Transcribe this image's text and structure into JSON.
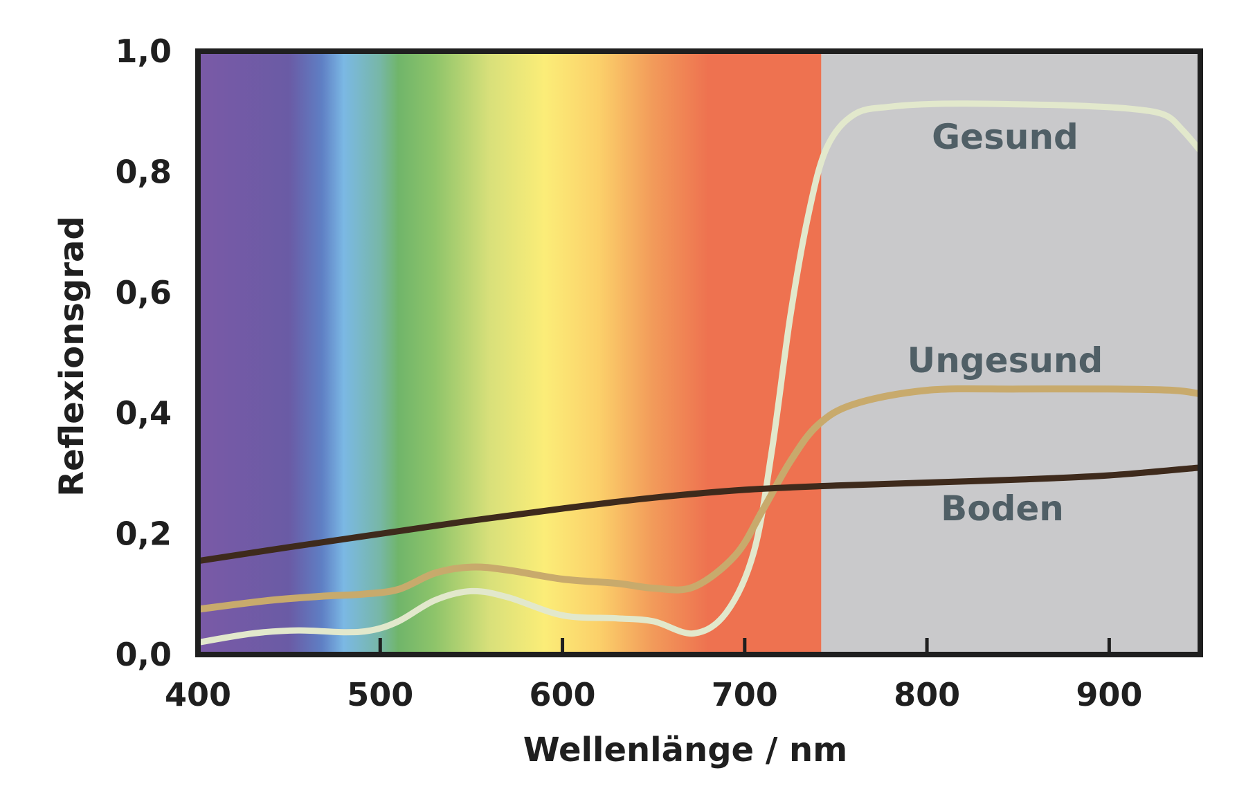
{
  "chart_data": {
    "type": "line",
    "xlabel": "Wellenlänge / nm",
    "ylabel": "Reflexionsgrad",
    "xlim": [
      400,
      950
    ],
    "ylim": [
      0.0,
      1.0
    ],
    "x_ticks": [
      400,
      500,
      600,
      700,
      800,
      900
    ],
    "x_tick_labels": [
      "400",
      "500",
      "600",
      "700",
      "800",
      "900"
    ],
    "y_ticks": [
      0.0,
      0.2,
      0.4,
      0.6,
      0.8,
      1.0
    ],
    "y_tick_labels": [
      "0,0",
      "0,2",
      "0,4",
      "0,6",
      "0,8",
      "1,0"
    ],
    "background": {
      "visible_spectrum_end_nm": 742,
      "infrared_color": "#c9c9cb",
      "spectrum_stops": [
        {
          "nm": 400,
          "color": "#7a5aa6"
        },
        {
          "nm": 450,
          "color": "#6a5ba5"
        },
        {
          "nm": 468,
          "color": "#5f7fc4"
        },
        {
          "nm": 480,
          "color": "#7bb8e4"
        },
        {
          "nm": 500,
          "color": "#77b7a6"
        },
        {
          "nm": 510,
          "color": "#70b56a"
        },
        {
          "nm": 530,
          "color": "#8ec46a"
        },
        {
          "nm": 560,
          "color": "#d8e07a"
        },
        {
          "nm": 590,
          "color": "#fbed78"
        },
        {
          "nm": 620,
          "color": "#fbd06a"
        },
        {
          "nm": 650,
          "color": "#f29a5a"
        },
        {
          "nm": 680,
          "color": "#ee7250"
        },
        {
          "nm": 742,
          "color": "#ee7250"
        }
      ]
    },
    "series": [
      {
        "name": "Gesund",
        "color": "#e2e8cc",
        "label_color": "#505f66",
        "x": [
          400,
          430,
          455,
          480,
          495,
          510,
          530,
          550,
          570,
          600,
          630,
          650,
          672,
          690,
          705,
          715,
          725,
          735,
          745,
          760,
          780,
          810,
          850,
          880,
          910,
          930,
          940,
          950
        ],
        "y": [
          0.02,
          0.035,
          0.04,
          0.037,
          0.04,
          0.055,
          0.09,
          0.105,
          0.095,
          0.065,
          0.06,
          0.055,
          0.035,
          0.07,
          0.17,
          0.34,
          0.56,
          0.73,
          0.84,
          0.895,
          0.908,
          0.913,
          0.912,
          0.91,
          0.905,
          0.895,
          0.87,
          0.835
        ]
      },
      {
        "name": "Ungesund",
        "color": "#c8aa6c",
        "label_color": "#505f66",
        "x": [
          400,
          440,
          470,
          490,
          510,
          530,
          550,
          570,
          600,
          630,
          650,
          672,
          695,
          710,
          725,
          740,
          760,
          800,
          850,
          900,
          935,
          950
        ],
        "y": [
          0.075,
          0.09,
          0.097,
          0.1,
          0.108,
          0.135,
          0.145,
          0.14,
          0.125,
          0.118,
          0.11,
          0.112,
          0.165,
          0.24,
          0.32,
          0.38,
          0.415,
          0.438,
          0.44,
          0.44,
          0.438,
          0.432
        ]
      },
      {
        "name": "Boden",
        "color": "#3e2a1c",
        "label_color": "#505f66",
        "x": [
          400,
          450,
          500,
          550,
          600,
          650,
          700,
          750,
          800,
          850,
          900,
          950
        ],
        "y": [
          0.155,
          0.178,
          0.2,
          0.222,
          0.242,
          0.26,
          0.273,
          0.28,
          0.285,
          0.29,
          0.297,
          0.31
        ]
      }
    ]
  }
}
